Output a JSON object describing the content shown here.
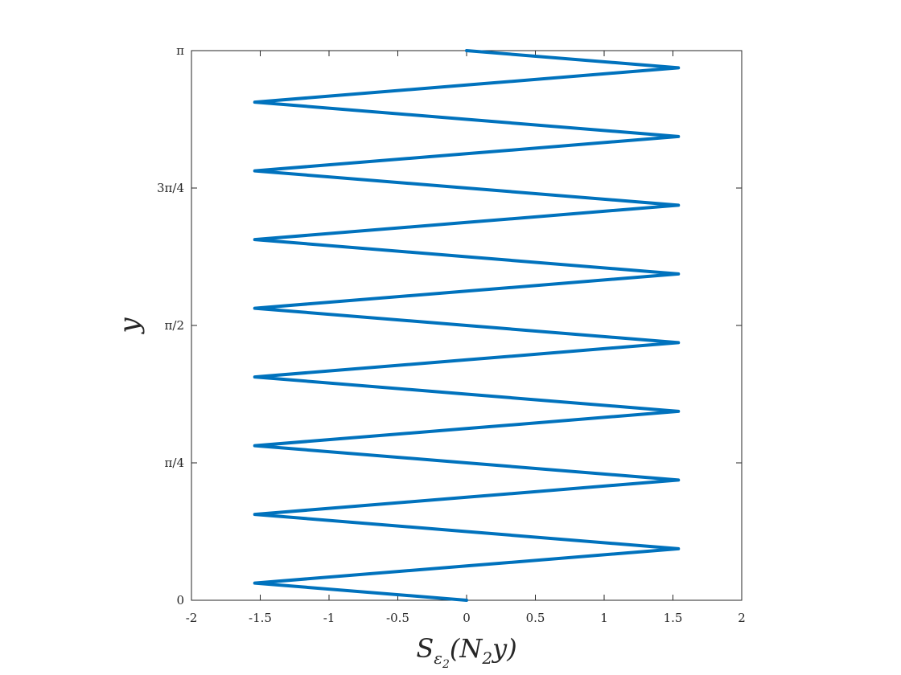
{
  "chart_data": {
    "type": "line",
    "title": "",
    "xlabel": "S_ε₂(N₂y)",
    "xlabel_parts": {
      "base": "S",
      "sub": "ε",
      "subsub": "2",
      "arg_open": "(N",
      "arg_sub": "2",
      "arg_close": "y)"
    },
    "ylabel": "y",
    "xlim": [
      -2,
      2
    ],
    "ylim": [
      0,
      3.14159
    ],
    "grid": false,
    "legend": "none",
    "line_color": "#0072BD",
    "xticks": [
      -2,
      -1.5,
      -1,
      -0.5,
      0,
      0.5,
      1,
      1.5,
      2
    ],
    "xtick_labels": [
      "-2",
      "-1.5",
      "-1",
      "-0.5",
      "0",
      "0.5",
      "1",
      "1.5",
      "2"
    ],
    "yticks": [
      0,
      0.7854,
      1.5708,
      2.3562,
      3.14159
    ],
    "ytick_labels": [
      "0",
      "π/4",
      "π/2",
      "3π/4",
      "π"
    ],
    "series": [
      {
        "x": [
          0,
          -1.54,
          0,
          1.54,
          0,
          -1.54,
          0,
          1.54,
          0,
          -1.54,
          0,
          1.54,
          0,
          -1.54,
          0,
          1.54,
          0,
          -1.54,
          0,
          1.54,
          0,
          -1.54,
          0,
          1.54,
          0,
          -1.54,
          0,
          1.54,
          0,
          -1.54,
          0,
          1.54,
          0
        ],
        "y": [
          0,
          0.0982,
          0.1963,
          0.2945,
          0.3927,
          0.4909,
          0.589,
          0.6872,
          0.7854,
          0.8836,
          0.9817,
          1.0799,
          1.1781,
          1.2763,
          1.3744,
          1.4726,
          1.5708,
          1.669,
          1.7671,
          1.8653,
          1.9635,
          2.0617,
          2.1598,
          2.258,
          2.3562,
          2.4544,
          2.5525,
          2.6507,
          2.7489,
          2.8471,
          2.9452,
          3.0434,
          3.1416
        ]
      }
    ]
  }
}
